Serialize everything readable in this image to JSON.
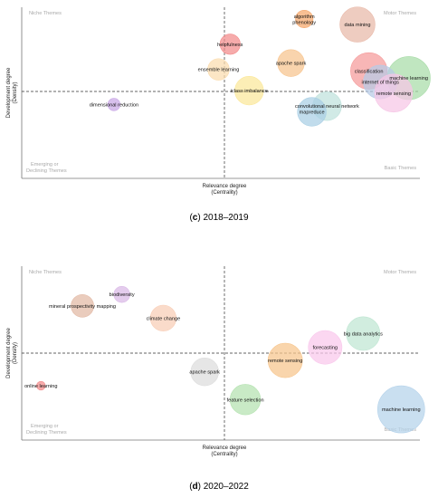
{
  "chart_data": [
    {
      "type": "scatter",
      "caption_letter": "c",
      "caption_rest": "2018–2019",
      "xlabel": "Relevance degree",
      "xlabel2": "(Centrality)",
      "ylabel": "Development degree",
      "ylabel2": "(Density)",
      "quadrants": {
        "top_left": "Niche Themes",
        "top_right": "Motor Themes",
        "bottom_left_1": "Emerging or",
        "bottom_left_2": "Declining Themes",
        "bottom_right": "Basic Themes"
      },
      "points": [
        {
          "label": "algorithm",
          "label2": "phenology",
          "x": 0.42,
          "y": 0.92,
          "size": 0.6,
          "color": "#f5a66a"
        },
        {
          "label": "data mining",
          "x": 0.7,
          "y": 0.85,
          "size": 2.4,
          "color": "#e8b8a8"
        },
        {
          "label": "helpfulness",
          "x": 0.03,
          "y": 0.6,
          "size": 0.8,
          "color": "#f28b8b"
        },
        {
          "label": "apache spark",
          "x": 0.35,
          "y": 0.36,
          "size": 1.4,
          "color": "#f7c48e"
        },
        {
          "label": "ensemble learning",
          "x": -0.03,
          "y": 0.28,
          "size": 0.9,
          "color": "#fbdcae"
        },
        {
          "label": "classification",
          "x": 0.76,
          "y": 0.26,
          "size": 2.6,
          "color": "#f59a9a"
        },
        {
          "label": "machine learning",
          "x": 0.97,
          "y": 0.17,
          "size": 3.6,
          "color": "#a8dca8"
        },
        {
          "label": "internet of things",
          "x": 0.82,
          "y": 0.12,
          "size": 2.2,
          "color": "#b7cbe6"
        },
        {
          "label": "remote sensing",
          "x": 0.89,
          "y": -0.02,
          "size": 2.8,
          "color": "#f6c6e6"
        },
        {
          "label": "iclass imbalance",
          "x": 0.13,
          "y": 0.01,
          "size": 1.6,
          "color": "#fbe89a"
        },
        {
          "label": "convolutional neural network",
          "x": 0.54,
          "y": -0.18,
          "size": 1.6,
          "color": "#bfe2dc"
        },
        {
          "label": "mapreduce",
          "x": 0.46,
          "y": -0.25,
          "size": 1.6,
          "color": "#a9cfe4"
        },
        {
          "label": "dimensional reduction",
          "x": -0.56,
          "y": -0.16,
          "size": 0.3,
          "color": "#c9a7e6"
        }
      ]
    },
    {
      "type": "scatter",
      "caption_letter": "d",
      "caption_rest": "2020–2022",
      "xlabel": "Relevance degree",
      "xlabel2": "(Centrality)",
      "ylabel": "Development degree",
      "ylabel2": "(Density)",
      "quadrants": {
        "top_left": "Niche Themes",
        "top_right": "Motor Themes",
        "bottom_left_1": "Emerging or",
        "bottom_left_2": "Declining Themes",
        "bottom_right": "Basic Themes"
      },
      "points": [
        {
          "label": "biodiversity",
          "x": -0.52,
          "y": 0.72,
          "size": 0.5,
          "color": "#d9b8e6"
        },
        {
          "label": "mineral prospectivity mapping",
          "x": -0.72,
          "y": 0.58,
          "size": 1.0,
          "color": "#e2b8a4"
        },
        {
          "label": "climate change",
          "x": -0.31,
          "y": 0.43,
          "size": 1.3,
          "color": "#f8cdb6"
        },
        {
          "label": "big data analytics",
          "x": 0.73,
          "y": 0.24,
          "size": 2.2,
          "color": "#bfe6d2"
        },
        {
          "label": "forecasting",
          "x": 0.53,
          "y": 0.07,
          "size": 2.2,
          "color": "#f9c8ec"
        },
        {
          "label": "remote sensing",
          "x": 0.32,
          "y": -0.09,
          "size": 2.3,
          "color": "#f7c58c"
        },
        {
          "label": "apache spark",
          "x": -0.1,
          "y": -0.23,
          "size": 1.5,
          "color": "#dcdcdc"
        },
        {
          "label": "online learning",
          "x": -0.93,
          "y": -0.4,
          "size": 0.15,
          "color": "#f28b8b"
        },
        {
          "label": "feature selection",
          "x": 0.11,
          "y": -0.57,
          "size": 1.8,
          "color": "#b4e2b0"
        },
        {
          "label": "machine learning",
          "x": 0.93,
          "y": -0.69,
          "size": 4.3,
          "color": "#b4d2ea"
        }
      ]
    }
  ]
}
